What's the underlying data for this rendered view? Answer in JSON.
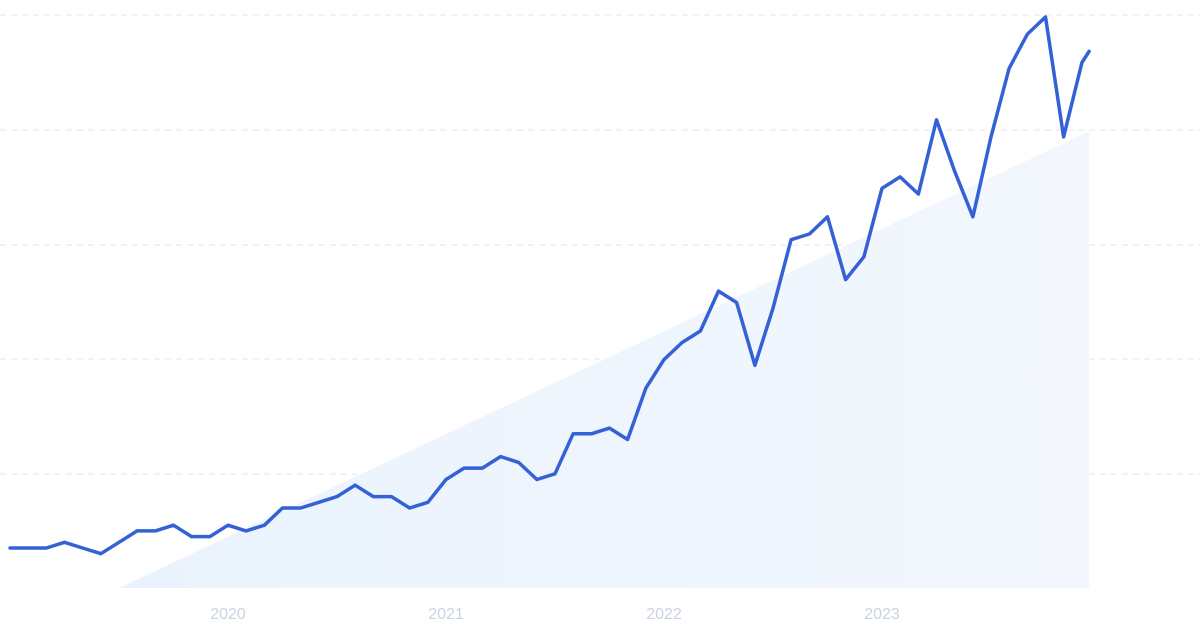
{
  "chart_data": {
    "type": "line",
    "title": "",
    "xlabel": "",
    "ylabel": "",
    "x_tick_labels": [
      "2020",
      "2021",
      "2022",
      "2023"
    ],
    "x_tick_positions": [
      2020.0,
      2021.0,
      2022.0,
      2023.0
    ],
    "xlim": [
      2019.0,
      2024.0
    ],
    "ylim": [
      0,
      100
    ],
    "grid": true,
    "legend": "none",
    "trend_fill": {
      "from": [
        2019.5,
        0
      ],
      "to": [
        2023.95,
        80
      ]
    },
    "colors": {
      "line": "#3461d6",
      "grid": "#e3e6ec",
      "trend_fill": "#e8f1fc",
      "tick_text": "#c7d3e3"
    },
    "series": [
      {
        "x": [
          2019.0,
          2019.083,
          2019.167,
          2019.25,
          2019.333,
          2019.417,
          2019.5,
          2019.583,
          2019.667,
          2019.75,
          2019.833,
          2019.917,
          2020.0,
          2020.083,
          2020.167,
          2020.25,
          2020.333,
          2020.417,
          2020.5,
          2020.583,
          2020.667,
          2020.75,
          2020.833,
          2020.917,
          2021.0,
          2021.083,
          2021.167,
          2021.25,
          2021.333,
          2021.417,
          2021.5,
          2021.583,
          2021.667,
          2021.75,
          2021.833,
          2021.917,
          2022.0,
          2022.083,
          2022.167,
          2022.25,
          2022.333,
          2022.417,
          2022.5,
          2022.583,
          2022.667,
          2022.75,
          2022.833,
          2022.917,
          2023.0,
          2023.083,
          2023.167,
          2023.25,
          2023.333,
          2023.417,
          2023.5,
          2023.583,
          2023.667,
          2023.75,
          2023.833,
          2023.917,
          2023.95
        ],
        "values": [
          7,
          7,
          7,
          8,
          7,
          6,
          8,
          10,
          10,
          11,
          9,
          9,
          11,
          10,
          11,
          14,
          14,
          15,
          16,
          18,
          16,
          16,
          14,
          15,
          19,
          21,
          21,
          23,
          22,
          19,
          20,
          27,
          27,
          28,
          26,
          35,
          40,
          43,
          45,
          52,
          50,
          39,
          49,
          61,
          62,
          65,
          54,
          58,
          70,
          72,
          69,
          82,
          73,
          65,
          79,
          91,
          97,
          100,
          79,
          92,
          94
        ]
      }
    ]
  }
}
